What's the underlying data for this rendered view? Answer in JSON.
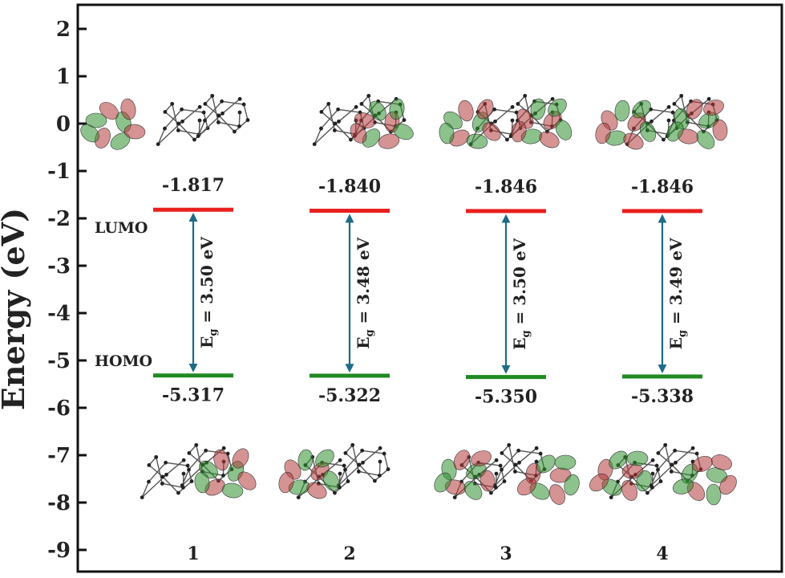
{
  "chart_data": {
    "type": "energy-level-diagram",
    "ylabel": "Energy (eV)",
    "ylim": [
      -9.3,
      2.5
    ],
    "yticks": [
      2,
      1,
      0,
      -1,
      -2,
      -3,
      -4,
      -5,
      -6,
      -7,
      -8,
      -9
    ],
    "level_names": {
      "lumo": "LUMO",
      "homo": "HOMO"
    },
    "compounds": [
      {
        "label": "1",
        "lumo": -1.817,
        "homo": -5.317,
        "lumo_text": "-1.817",
        "homo_text": "-5.317",
        "gap_main": "E",
        "gap_sub": "g",
        "gap_value": " = 3.50 eV"
      },
      {
        "label": "2",
        "lumo": -1.84,
        "homo": -5.322,
        "lumo_text": "-1.840",
        "homo_text": "-5.322",
        "gap_main": "E",
        "gap_sub": "g",
        "gap_value": " = 3.48 eV"
      },
      {
        "label": "3",
        "lumo": -1.846,
        "homo": -5.35,
        "lumo_text": "-1.846",
        "homo_text": "-5.350",
        "gap_main": "E",
        "gap_sub": "g",
        "gap_value": " = 3.50 eV"
      },
      {
        "label": "4",
        "lumo": -1.846,
        "homo": -5.338,
        "lumo_text": "-1.846",
        "homo_text": "-5.338",
        "gap_main": "E",
        "gap_sub": "g",
        "gap_value": " = 3.49 eV"
      }
    ],
    "colors": {
      "lumo_line": "#e8201e",
      "homo_line": "#1f8a22",
      "gap_arrow": "#1e6b86",
      "orbital_red": "#b23a3a",
      "orbital_green": "#2f8f2f",
      "frame": "#111111"
    },
    "images": {
      "lumo_orbitals": "molecular orbital renderings (LUMO)",
      "homo_orbitals": "molecular orbital renderings (HOMO)"
    }
  }
}
